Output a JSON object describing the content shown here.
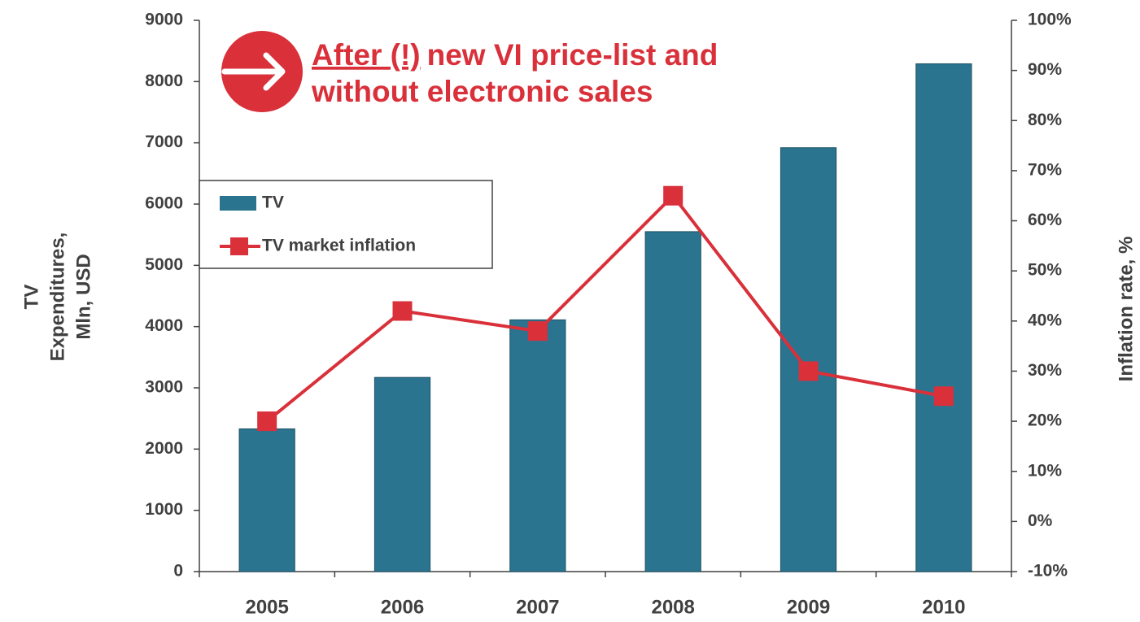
{
  "chart_data": {
    "type": "bar",
    "categories": [
      "2005",
      "2006",
      "2007",
      "2008",
      "2009",
      "2010"
    ],
    "series": [
      {
        "name": "TV",
        "type": "bar",
        "color": "#2a7490",
        "values": [
          2330,
          3170,
          4110,
          5550,
          6920,
          8290
        ]
      },
      {
        "name": "TV market inflation",
        "type": "line",
        "axis": "y2",
        "color": "#d9303a",
        "values": [
          20,
          42,
          38,
          65,
          30,
          25
        ]
      }
    ],
    "y_label": [
      "TV",
      "Expenditures,",
      "Mln, USD"
    ],
    "y2_label": "Inflation rate, %",
    "ylim": [
      0,
      9000
    ],
    "yticks": [
      0,
      1000,
      2000,
      3000,
      4000,
      5000,
      6000,
      7000,
      8000,
      9000
    ],
    "y2lim": [
      -10,
      100
    ],
    "y2ticks": [
      {
        "value": -10,
        "label": "-10%"
      },
      {
        "value": 0,
        "label": "0%"
      },
      {
        "value": 10,
        "label": "10%"
      },
      {
        "value": 20,
        "label": "20%"
      },
      {
        "value": 30,
        "label": "30%"
      },
      {
        "value": 40,
        "label": "40%"
      },
      {
        "value": 50,
        "label": "50%"
      },
      {
        "value": 60,
        "label": "60%"
      },
      {
        "value": 70,
        "label": "70%"
      },
      {
        "value": 80,
        "label": "80%"
      },
      {
        "value": 90,
        "label": "90%"
      },
      {
        "value": 100,
        "label": "100%"
      }
    ],
    "annotation": {
      "underlined": "After (!)",
      "line1": "new VI price-list and",
      "line2": "without electronic sales",
      "color": "#d9303a"
    },
    "legend": "upper left"
  }
}
